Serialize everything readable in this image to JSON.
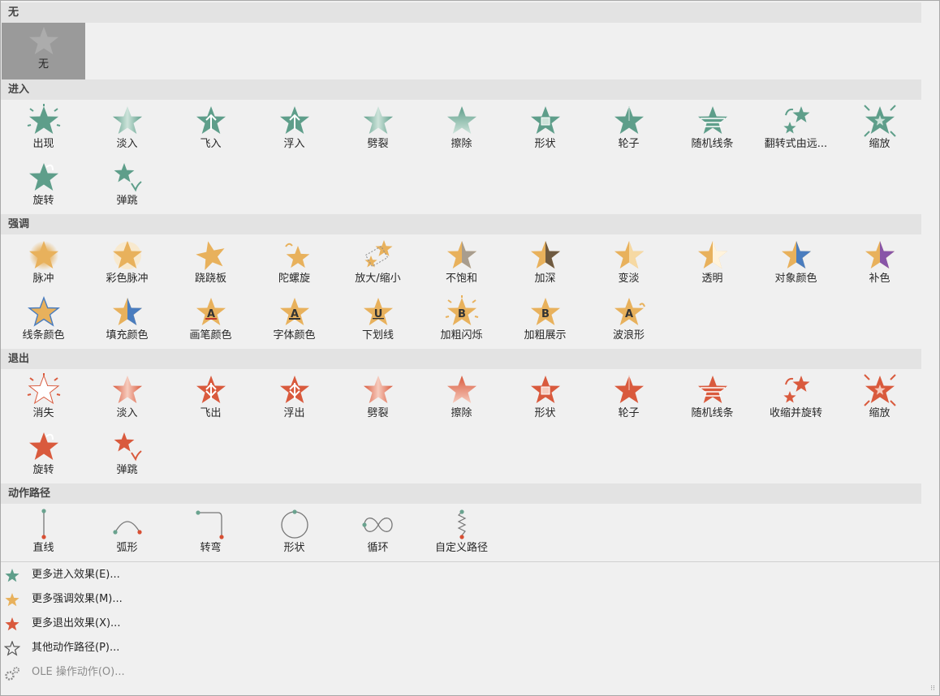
{
  "colors": {
    "entrance": "#5e9e8a",
    "emphasis": "#e8b15c",
    "exit": "#d95a3d",
    "path_dot_start": "#6aa38f",
    "path_dot_end": "#d84f33"
  },
  "sections": [
    {
      "title": "无",
      "group": "none",
      "items": [
        {
          "label": "无",
          "icon": "none-star-icon",
          "selected": true
        }
      ]
    },
    {
      "title": "进入",
      "group": "entrance",
      "items": [
        {
          "label": "出现",
          "icon": "appear-icon"
        },
        {
          "label": "淡入",
          "icon": "fade-icon"
        },
        {
          "label": "飞入",
          "icon": "fly-in-icon"
        },
        {
          "label": "浮入",
          "icon": "float-in-icon"
        },
        {
          "label": "劈裂",
          "icon": "split-icon"
        },
        {
          "label": "擦除",
          "icon": "wipe-icon"
        },
        {
          "label": "形状",
          "icon": "shape-icon"
        },
        {
          "label": "轮子",
          "icon": "wheel-icon"
        },
        {
          "label": "随机线条",
          "icon": "random-bars-icon"
        },
        {
          "label": "翻转式由远...",
          "icon": "grow-turn-icon"
        },
        {
          "label": "缩放",
          "icon": "zoom-icon"
        },
        {
          "label": "旋转",
          "icon": "swivel-icon"
        },
        {
          "label": "弹跳",
          "icon": "bounce-icon"
        }
      ]
    },
    {
      "title": "强调",
      "group": "emphasis",
      "items": [
        {
          "label": "脉冲",
          "icon": "pulse-icon"
        },
        {
          "label": "彩色脉冲",
          "icon": "color-pulse-icon"
        },
        {
          "label": "跷跷板",
          "icon": "teeter-icon"
        },
        {
          "label": "陀螺旋",
          "icon": "spin-icon"
        },
        {
          "label": "放大/缩小",
          "icon": "grow-shrink-icon"
        },
        {
          "label": "不饱和",
          "icon": "desaturate-icon"
        },
        {
          "label": "加深",
          "icon": "darken-icon"
        },
        {
          "label": "变淡",
          "icon": "lighten-icon"
        },
        {
          "label": "透明",
          "icon": "transparency-icon"
        },
        {
          "label": "对象颜色",
          "icon": "object-color-icon"
        },
        {
          "label": "补色",
          "icon": "complementary-color-icon"
        },
        {
          "label": "线条颜色",
          "icon": "line-color-icon"
        },
        {
          "label": "填充颜色",
          "icon": "fill-color-icon"
        },
        {
          "label": "画笔颜色",
          "icon": "brush-color-icon",
          "letter": "A"
        },
        {
          "label": "字体颜色",
          "icon": "font-color-icon",
          "letter": "A"
        },
        {
          "label": "下划线",
          "icon": "underline-icon",
          "letter": "U"
        },
        {
          "label": "加粗闪烁",
          "icon": "bold-flash-icon",
          "letter": "B"
        },
        {
          "label": "加粗展示",
          "icon": "bold-reveal-icon",
          "letter": "B"
        },
        {
          "label": "波浪形",
          "icon": "wave-icon",
          "letter": "A"
        }
      ]
    },
    {
      "title": "退出",
      "group": "exit",
      "items": [
        {
          "label": "消失",
          "icon": "disappear-icon"
        },
        {
          "label": "淡入",
          "icon": "fade-out-icon"
        },
        {
          "label": "飞出",
          "icon": "fly-out-icon"
        },
        {
          "label": "浮出",
          "icon": "float-out-icon"
        },
        {
          "label": "劈裂",
          "icon": "split-out-icon"
        },
        {
          "label": "擦除",
          "icon": "wipe-out-icon"
        },
        {
          "label": "形状",
          "icon": "shape-out-icon"
        },
        {
          "label": "轮子",
          "icon": "wheel-out-icon"
        },
        {
          "label": "随机线条",
          "icon": "random-bars-out-icon"
        },
        {
          "label": "收缩并旋转",
          "icon": "shrink-turn-icon"
        },
        {
          "label": "缩放",
          "icon": "zoom-out-icon"
        },
        {
          "label": "旋转",
          "icon": "swivel-out-icon"
        },
        {
          "label": "弹跳",
          "icon": "bounce-out-icon"
        }
      ]
    },
    {
      "title": "动作路径",
      "group": "path",
      "items": [
        {
          "label": "直线",
          "icon": "line-path-icon"
        },
        {
          "label": "弧形",
          "icon": "arc-path-icon"
        },
        {
          "label": "转弯",
          "icon": "turn-path-icon"
        },
        {
          "label": "形状",
          "icon": "shape-path-icon"
        },
        {
          "label": "循环",
          "icon": "loop-path-icon"
        },
        {
          "label": "自定义路径",
          "icon": "custom-path-icon"
        }
      ]
    }
  ],
  "more_items": [
    {
      "label": "更多进入效果(E)...",
      "icon": "green-star-icon",
      "enabled": true
    },
    {
      "label": "更多强调效果(M)...",
      "icon": "gold-star-icon",
      "enabled": true
    },
    {
      "label": "更多退出效果(X)...",
      "icon": "red-star-icon",
      "enabled": true
    },
    {
      "label": "其他动作路径(P)...",
      "icon": "outline-star-icon",
      "enabled": true
    },
    {
      "label": "OLE 操作动作(O)...",
      "icon": "gears-icon",
      "enabled": false
    }
  ]
}
